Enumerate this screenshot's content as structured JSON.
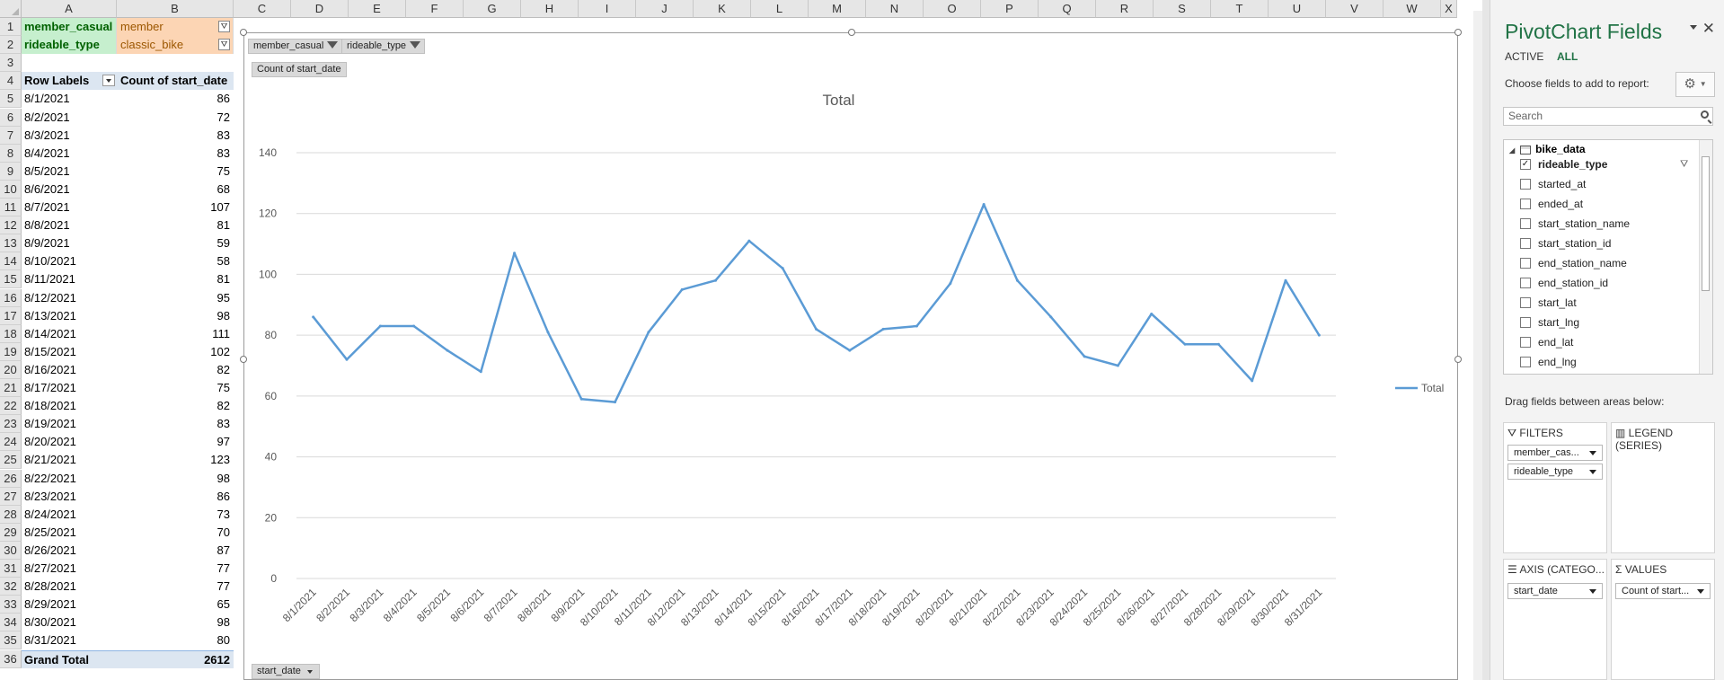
{
  "columns": [
    "A",
    "B",
    "C",
    "D",
    "E",
    "F",
    "G",
    "H",
    "I",
    "J",
    "K",
    "L",
    "M",
    "N",
    "O",
    "P",
    "Q",
    "R",
    "S",
    "T",
    "U",
    "V",
    "W",
    "X"
  ],
  "filters": [
    {
      "row": "1",
      "label": "member_casual",
      "value": "member"
    },
    {
      "row": "2",
      "label": "rideable_type",
      "value": "classic_bike"
    }
  ],
  "pivot": {
    "header_row": "4",
    "row_labels": "Row Labels",
    "value_header": "Count of start_date",
    "rows": [
      {
        "row": "5",
        "date": "8/1/2021",
        "count": "86"
      },
      {
        "row": "6",
        "date": "8/2/2021",
        "count": "72"
      },
      {
        "row": "7",
        "date": "8/3/2021",
        "count": "83"
      },
      {
        "row": "8",
        "date": "8/4/2021",
        "count": "83"
      },
      {
        "row": "9",
        "date": "8/5/2021",
        "count": "75"
      },
      {
        "row": "10",
        "date": "8/6/2021",
        "count": "68"
      },
      {
        "row": "11",
        "date": "8/7/2021",
        "count": "107"
      },
      {
        "row": "12",
        "date": "8/8/2021",
        "count": "81"
      },
      {
        "row": "13",
        "date": "8/9/2021",
        "count": "59"
      },
      {
        "row": "14",
        "date": "8/10/2021",
        "count": "58"
      },
      {
        "row": "15",
        "date": "8/11/2021",
        "count": "81"
      },
      {
        "row": "16",
        "date": "8/12/2021",
        "count": "95"
      },
      {
        "row": "17",
        "date": "8/13/2021",
        "count": "98"
      },
      {
        "row": "18",
        "date": "8/14/2021",
        "count": "111"
      },
      {
        "row": "19",
        "date": "8/15/2021",
        "count": "102"
      },
      {
        "row": "20",
        "date": "8/16/2021",
        "count": "82"
      },
      {
        "row": "21",
        "date": "8/17/2021",
        "count": "75"
      },
      {
        "row": "22",
        "date": "8/18/2021",
        "count": "82"
      },
      {
        "row": "23",
        "date": "8/19/2021",
        "count": "83"
      },
      {
        "row": "24",
        "date": "8/20/2021",
        "count": "97"
      },
      {
        "row": "25",
        "date": "8/21/2021",
        "count": "123"
      },
      {
        "row": "26",
        "date": "8/22/2021",
        "count": "98"
      },
      {
        "row": "27",
        "date": "8/23/2021",
        "count": "86"
      },
      {
        "row": "28",
        "date": "8/24/2021",
        "count": "73"
      },
      {
        "row": "29",
        "date": "8/25/2021",
        "count": "70"
      },
      {
        "row": "30",
        "date": "8/26/2021",
        "count": "87"
      },
      {
        "row": "31",
        "date": "8/27/2021",
        "count": "77"
      },
      {
        "row": "32",
        "date": "8/28/2021",
        "count": "77"
      },
      {
        "row": "33",
        "date": "8/29/2021",
        "count": "65"
      },
      {
        "row": "34",
        "date": "8/30/2021",
        "count": "98"
      },
      {
        "row": "35",
        "date": "8/31/2021",
        "count": "80"
      }
    ],
    "empty_row": "3",
    "total_row": "36",
    "total_label": "Grand Total",
    "total_value": "2612"
  },
  "chart_buttons": {
    "filter1": "member_casual",
    "filter2": "rideable_type",
    "value": "Count of start_date",
    "axis": "start_date"
  },
  "chart_data": {
    "type": "line",
    "title": "Total",
    "categories": [
      "8/1/2021",
      "8/2/2021",
      "8/3/2021",
      "8/4/2021",
      "8/5/2021",
      "8/6/2021",
      "8/7/2021",
      "8/8/2021",
      "8/9/2021",
      "8/10/2021",
      "8/11/2021",
      "8/12/2021",
      "8/13/2021",
      "8/14/2021",
      "8/15/2021",
      "8/16/2021",
      "8/17/2021",
      "8/18/2021",
      "8/19/2021",
      "8/20/2021",
      "8/21/2021",
      "8/22/2021",
      "8/23/2021",
      "8/24/2021",
      "8/25/2021",
      "8/26/2021",
      "8/27/2021",
      "8/28/2021",
      "8/29/2021",
      "8/30/2021",
      "8/31/2021"
    ],
    "series": [
      {
        "name": "Total",
        "values": [
          86,
          72,
          83,
          83,
          75,
          68,
          107,
          81,
          59,
          58,
          81,
          95,
          98,
          111,
          102,
          82,
          75,
          82,
          83,
          97,
          123,
          98,
          86,
          73,
          70,
          87,
          77,
          77,
          65,
          98,
          80
        ]
      }
    ],
    "ylim": [
      0,
      140
    ],
    "yticks": [
      "0",
      "20",
      "40",
      "60",
      "80",
      "100",
      "120",
      "140"
    ],
    "color": "#5b9bd5",
    "legend": "right",
    "grid": true
  },
  "panel": {
    "title": "PivotChart Fields",
    "tab_active": "ACTIVE",
    "tab_all": "ALL",
    "instruction": "Choose fields to add to report:",
    "search_placeholder": "Search",
    "table_name": "bike_data",
    "fields": [
      {
        "name": "rideable_type",
        "checked": true
      },
      {
        "name": "started_at",
        "checked": false
      },
      {
        "name": "ended_at",
        "checked": false
      },
      {
        "name": "start_station_name",
        "checked": false
      },
      {
        "name": "start_station_id",
        "checked": false
      },
      {
        "name": "end_station_name",
        "checked": false
      },
      {
        "name": "end_station_id",
        "checked": false
      },
      {
        "name": "start_lat",
        "checked": false
      },
      {
        "name": "start_lng",
        "checked": false
      },
      {
        "name": "end_lat",
        "checked": false
      },
      {
        "name": "end_lng",
        "checked": false
      }
    ],
    "drag_text": "Drag fields between areas below:",
    "areas": {
      "filters_title": "FILTERS",
      "legend_title": "LEGEND (SERIES)",
      "axis_title": "AXIS (CATEGO...",
      "values_title": "VALUES",
      "filter_items": [
        "member_cas...",
        "rideable_type"
      ],
      "axis_items": [
        "start_date"
      ],
      "value_items": [
        "Count of start..."
      ]
    }
  }
}
